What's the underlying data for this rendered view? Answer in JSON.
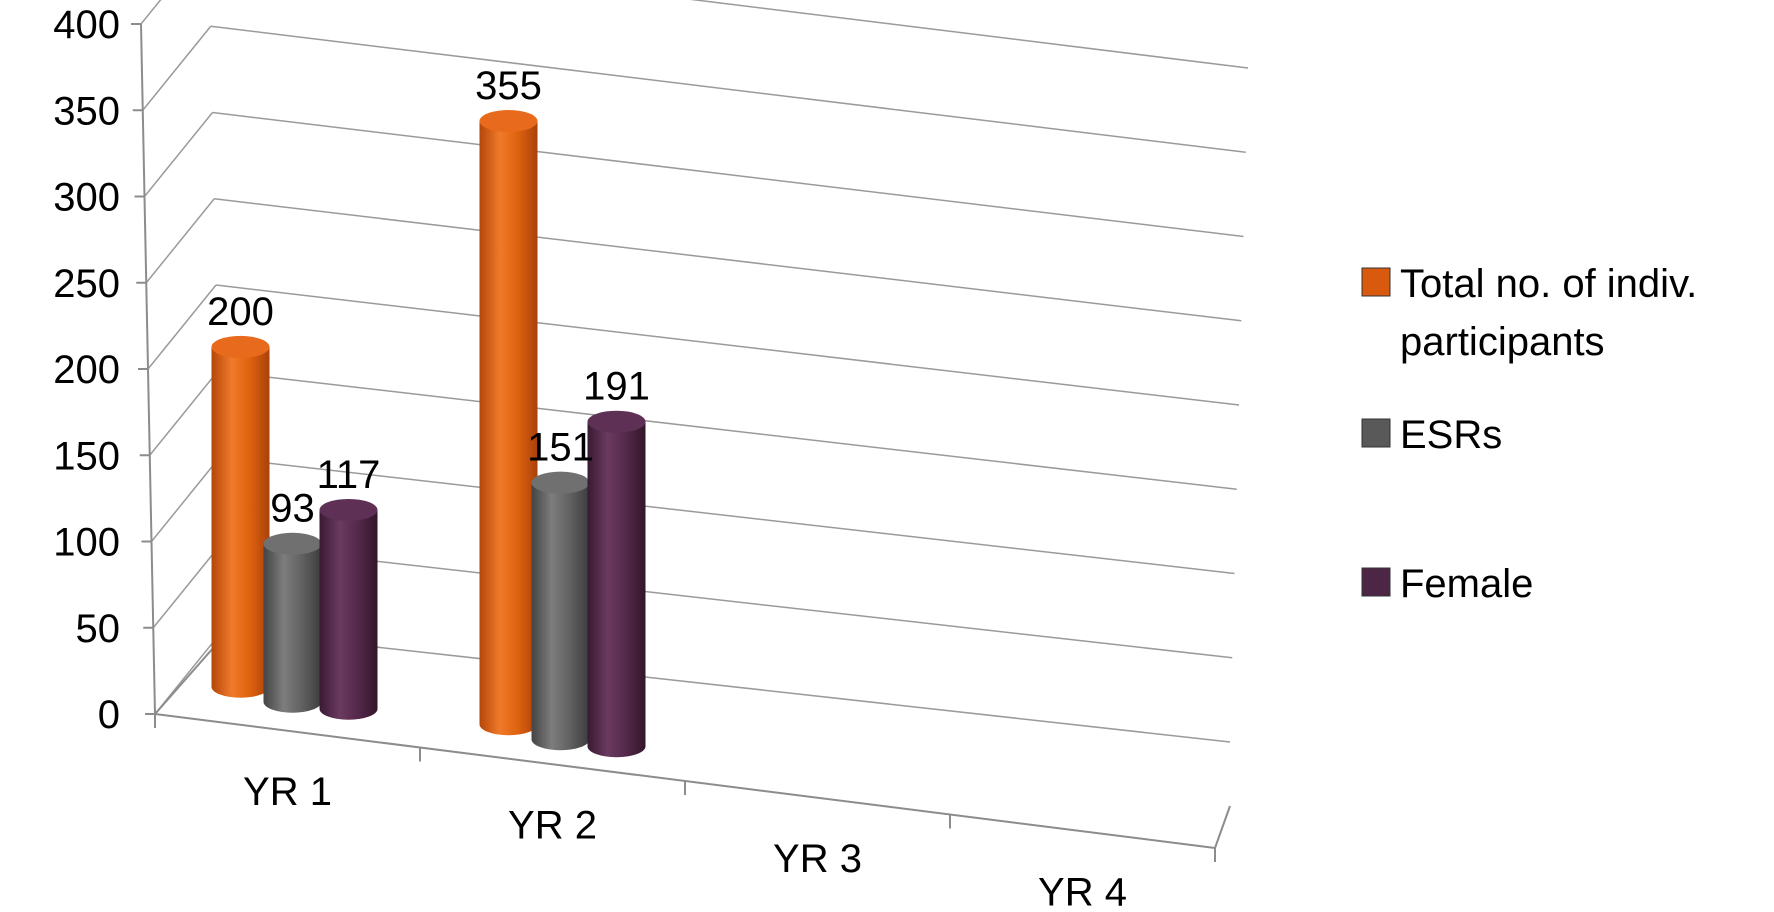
{
  "chart_data": {
    "type": "bar",
    "categories": [
      "YR 1",
      "YR 2",
      "YR 3",
      "YR 4"
    ],
    "series": [
      {
        "name": "Total no. of indiv. participants",
        "values": [
          200,
          355,
          null,
          null
        ],
        "color": "#d95a0f"
      },
      {
        "name": "ESRs",
        "values": [
          93,
          151,
          null,
          null
        ],
        "color": "#595959"
      },
      {
        "name": "Female",
        "values": [
          117,
          191,
          null,
          null
        ],
        "color": "#4d2645"
      }
    ],
    "legend_lines": [
      [
        "Total no. of indiv.",
        "participants"
      ],
      [
        "ESRs"
      ],
      [
        "Female"
      ]
    ],
    "y_ticks": [
      "0",
      "50",
      "100",
      "150",
      "200",
      "250",
      "300",
      "350",
      "400"
    ],
    "ylim": [
      0,
      400
    ],
    "grid": true,
    "legend_position": "right",
    "style": "3d-cylinder"
  }
}
